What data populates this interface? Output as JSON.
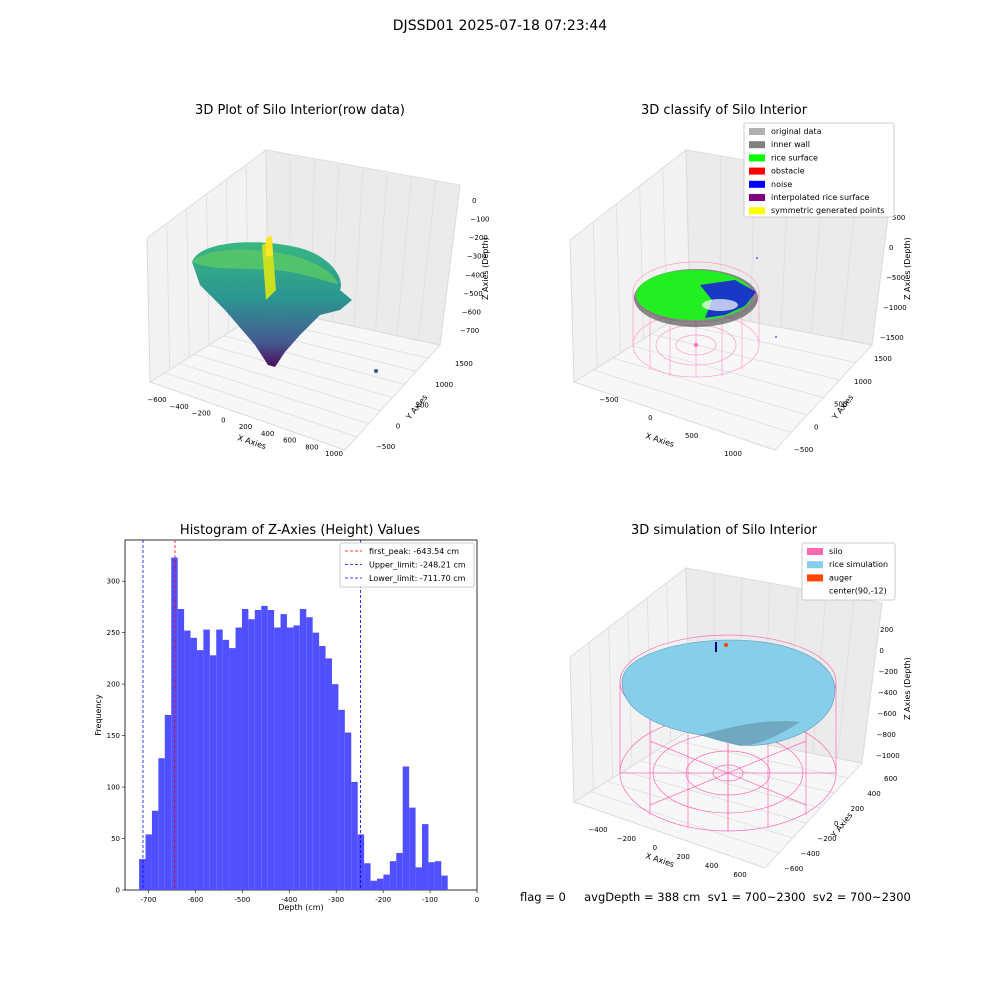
{
  "suptitle": "DJSSD01 2025-07-18 07:23:44",
  "panels": {
    "tl": {
      "title": "3D Plot of Silo Interior(row data)",
      "xlabel": "X Axies",
      "ylabel": "Y Axies",
      "zlabel": "Z Axies (Depth)",
      "xticks": [
        "−600",
        "−400",
        "−200",
        "0",
        "200",
        "400",
        "600",
        "800",
        "1000"
      ],
      "yticks": [
        "−500",
        "0",
        "500",
        "1000",
        "1500"
      ],
      "zticks": [
        "0",
        "−100",
        "−200",
        "−300",
        "−400",
        "−500",
        "−600",
        "−700"
      ]
    },
    "tr": {
      "title": "3D classify of Silo Interior",
      "xlabel": "X Axies",
      "ylabel": "Y Axies",
      "zlabel": "Z Axies (Depth)",
      "xticks": [
        "−500",
        "0",
        "500",
        "1000"
      ],
      "yticks": [
        "−500",
        "0",
        "500",
        "1000",
        "1500"
      ],
      "zticks": [
        "500",
        "0",
        "−500",
        "−1000",
        "−1500"
      ],
      "legend": [
        {
          "label": "original data",
          "color": "#b0b0b0"
        },
        {
          "label": "inner wall",
          "color": "#808080"
        },
        {
          "label": "rice surface",
          "color": "#00ff00"
        },
        {
          "label": "obstacle",
          "color": "#ff0000"
        },
        {
          "label": "noise",
          "color": "#0000ff"
        },
        {
          "label": "interpolated rice surface",
          "color": "#800080"
        },
        {
          "label": "symmetric generated points",
          "color": "#ffff00"
        }
      ]
    },
    "br": {
      "title": "3D simulation of Silo Interior",
      "xlabel": "X Axies",
      "ylabel": "Y Axies",
      "zlabel": "Z Axies (Depth)",
      "xticks": [
        "−400",
        "−200",
        "0",
        "200",
        "400",
        "600"
      ],
      "yticks": [
        "−600",
        "−400",
        "−200",
        "0",
        "200",
        "400",
        "600"
      ],
      "zticks": [
        "200",
        "0",
        "−200",
        "−400",
        "−600",
        "−800",
        "−1000"
      ],
      "legend": [
        {
          "label": "silo",
          "color": "#ff69b4"
        },
        {
          "label": "rice simulation",
          "color": "#87ceeb"
        },
        {
          "label": "auger",
          "color": "#ff4500"
        },
        {
          "label": "center(90,-12)",
          "color": ""
        }
      ]
    }
  },
  "chart_data": {
    "type": "bar",
    "title": "Histogram of Z-Axies (Height) Values",
    "xlabel": "Depth (cm)",
    "ylabel": "Frequency",
    "xlim": [
      -750,
      0
    ],
    "ylim": [
      0,
      340
    ],
    "xticks": [
      -700,
      -600,
      -500,
      -400,
      -300,
      -200,
      -100,
      0
    ],
    "yticks": [
      0,
      50,
      100,
      150,
      200,
      250,
      300
    ],
    "bin_start": -720,
    "bin_width": 13.7,
    "values": [
      30,
      54,
      77,
      128,
      170,
      323,
      273,
      252,
      245,
      233,
      253,
      228,
      253,
      243,
      235,
      255,
      273,
      263,
      272,
      276,
      272,
      255,
      268,
      255,
      257,
      273,
      265,
      250,
      237,
      225,
      200,
      175,
      153,
      105,
      54,
      26,
      9,
      11,
      15,
      28,
      36,
      120,
      80,
      22,
      64,
      27,
      28,
      14
    ],
    "bar_color": "#5050ff",
    "vlines": [
      {
        "label": "first_peak: -643.54 cm",
        "x": -643.54,
        "color": "#ff0000"
      },
      {
        "label": "Upper_limit: -248.21 cm",
        "x": -248.21,
        "color": "#0000ff"
      },
      {
        "label": "Lower_limit: -711.70 cm",
        "x": -711.7,
        "color": "#0000ff"
      }
    ],
    "legend_position": "top-right"
  },
  "footer": {
    "text": "flag = 0     avgDepth = 388 cm  sv1 = 700~2300  sv2 = 700~2300"
  }
}
